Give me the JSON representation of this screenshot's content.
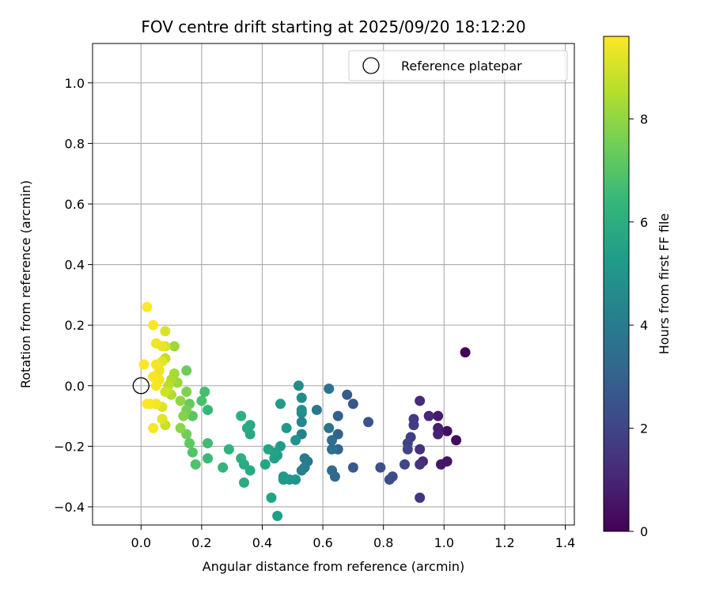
{
  "chart_data": {
    "type": "scatter",
    "title": "FOV centre drift starting at 2025/09/20 18:12:20",
    "xlabel": "Angular distance from reference (arcmin)",
    "ylabel": "Rotation from reference (arcmin)",
    "xlim": [
      -0.16,
      1.43
    ],
    "ylim": [
      -0.46,
      1.13
    ],
    "xticks": [
      0.0,
      0.2,
      0.4,
      0.6,
      0.8,
      1.0,
      1.2,
      1.4
    ],
    "xtick_labels": [
      "0.0",
      "0.2",
      "0.4",
      "0.6",
      "0.8",
      "1.0",
      "1.2",
      "1.4"
    ],
    "yticks": [
      -0.4,
      -0.2,
      0.0,
      0.2,
      0.4,
      0.6,
      0.8,
      1.0
    ],
    "ytick_labels": [
      "−0.4",
      "−0.2",
      "0.0",
      "0.2",
      "0.4",
      "0.6",
      "0.8",
      "1.0"
    ],
    "grid": true,
    "legend": {
      "placement": "upper right",
      "entries": [
        "Reference platepar"
      ]
    },
    "reference_point": {
      "x": 0.0,
      "y": 0.0
    },
    "colorbar": {
      "label": "Hours from first FF file",
      "colormap": "viridis",
      "range": [
        0,
        9.6
      ],
      "ticks": [
        0,
        2,
        4,
        6,
        8
      ],
      "tick_labels": [
        "0",
        "2",
        "4",
        "6",
        "8"
      ]
    },
    "points": [
      {
        "x": 1.07,
        "y": 0.11,
        "h": 0.1
      },
      {
        "x": 1.04,
        "y": -0.18,
        "h": 0.3
      },
      {
        "x": 1.01,
        "y": -0.15,
        "h": 0.4
      },
      {
        "x": 1.01,
        "y": -0.25,
        "h": 0.5
      },
      {
        "x": 0.99,
        "y": -0.26,
        "h": 0.6
      },
      {
        "x": 0.98,
        "y": -0.1,
        "h": 0.7
      },
      {
        "x": 0.98,
        "y": -0.14,
        "h": 0.8
      },
      {
        "x": 0.98,
        "y": -0.16,
        "h": 0.9
      },
      {
        "x": 0.95,
        "y": -0.1,
        "h": 1.0
      },
      {
        "x": 0.93,
        "y": -0.25,
        "h": 1.1
      },
      {
        "x": 0.92,
        "y": -0.05,
        "h": 1.2
      },
      {
        "x": 0.92,
        "y": -0.21,
        "h": 1.3
      },
      {
        "x": 0.92,
        "y": -0.26,
        "h": 1.4
      },
      {
        "x": 0.92,
        "y": -0.37,
        "h": 1.5
      },
      {
        "x": 0.9,
        "y": -0.11,
        "h": 1.6
      },
      {
        "x": 0.9,
        "y": -0.13,
        "h": 1.7
      },
      {
        "x": 0.89,
        "y": -0.17,
        "h": 1.8
      },
      {
        "x": 0.88,
        "y": -0.19,
        "h": 1.9
      },
      {
        "x": 0.88,
        "y": -0.21,
        "h": 2.0
      },
      {
        "x": 0.87,
        "y": -0.26,
        "h": 2.1
      },
      {
        "x": 0.83,
        "y": -0.3,
        "h": 2.2
      },
      {
        "x": 0.82,
        "y": -0.31,
        "h": 2.3
      },
      {
        "x": 0.79,
        "y": -0.27,
        "h": 2.4
      },
      {
        "x": 0.75,
        "y": -0.12,
        "h": 2.5
      },
      {
        "x": 0.7,
        "y": -0.06,
        "h": 2.6
      },
      {
        "x": 0.7,
        "y": -0.27,
        "h": 2.7
      },
      {
        "x": 0.68,
        "y": -0.03,
        "h": 2.8
      },
      {
        "x": 0.65,
        "y": -0.1,
        "h": 2.9
      },
      {
        "x": 0.65,
        "y": -0.16,
        "h": 3.0
      },
      {
        "x": 0.65,
        "y": -0.21,
        "h": 3.1
      },
      {
        "x": 0.64,
        "y": -0.3,
        "h": 3.2
      },
      {
        "x": 0.63,
        "y": -0.28,
        "h": 3.3
      },
      {
        "x": 0.63,
        "y": -0.18,
        "h": 3.4
      },
      {
        "x": 0.63,
        "y": -0.21,
        "h": 3.5
      },
      {
        "x": 0.62,
        "y": -0.14,
        "h": 3.6
      },
      {
        "x": 0.62,
        "y": -0.01,
        "h": 3.7
      },
      {
        "x": 0.58,
        "y": -0.08,
        "h": 3.8
      },
      {
        "x": 0.55,
        "y": -0.25,
        "h": 3.9
      },
      {
        "x": 0.54,
        "y": -0.24,
        "h": 4.0
      },
      {
        "x": 0.54,
        "y": -0.27,
        "h": 4.1
      },
      {
        "x": 0.53,
        "y": -0.28,
        "h": 4.2
      },
      {
        "x": 0.53,
        "y": -0.16,
        "h": 4.3
      },
      {
        "x": 0.53,
        "y": -0.12,
        "h": 4.4
      },
      {
        "x": 0.53,
        "y": -0.09,
        "h": 4.5
      },
      {
        "x": 0.53,
        "y": -0.04,
        "h": 4.6
      },
      {
        "x": 0.52,
        "y": 0.0,
        "h": 4.7
      },
      {
        "x": 0.53,
        "y": -0.08,
        "h": 4.8
      },
      {
        "x": 0.51,
        "y": -0.18,
        "h": 4.9
      },
      {
        "x": 0.51,
        "y": -0.31,
        "h": 5.0
      },
      {
        "x": 0.49,
        "y": -0.31,
        "h": 5.05
      },
      {
        "x": 0.48,
        "y": -0.14,
        "h": 5.1
      },
      {
        "x": 0.47,
        "y": -0.31,
        "h": 5.15
      },
      {
        "x": 0.47,
        "y": -0.3,
        "h": 5.2
      },
      {
        "x": 0.46,
        "y": -0.06,
        "h": 5.25
      },
      {
        "x": 0.46,
        "y": -0.2,
        "h": 5.3
      },
      {
        "x": 0.45,
        "y": -0.23,
        "h": 5.35
      },
      {
        "x": 0.45,
        "y": -0.43,
        "h": 5.4
      },
      {
        "x": 0.44,
        "y": -0.24,
        "h": 5.45
      },
      {
        "x": 0.44,
        "y": -0.22,
        "h": 5.5
      },
      {
        "x": 0.43,
        "y": -0.37,
        "h": 5.55
      },
      {
        "x": 0.42,
        "y": -0.21,
        "h": 5.6
      },
      {
        "x": 0.41,
        "y": -0.26,
        "h": 5.65
      },
      {
        "x": 0.36,
        "y": -0.16,
        "h": 5.7
      },
      {
        "x": 0.36,
        "y": -0.13,
        "h": 5.75
      },
      {
        "x": 0.36,
        "y": -0.28,
        "h": 5.8
      },
      {
        "x": 0.35,
        "y": -0.14,
        "h": 5.85
      },
      {
        "x": 0.34,
        "y": -0.32,
        "h": 5.9
      },
      {
        "x": 0.34,
        "y": -0.26,
        "h": 5.95
      },
      {
        "x": 0.33,
        "y": -0.24,
        "h": 6.0
      },
      {
        "x": 0.33,
        "y": -0.1,
        "h": 6.1
      },
      {
        "x": 0.29,
        "y": -0.21,
        "h": 6.2
      },
      {
        "x": 0.27,
        "y": -0.27,
        "h": 6.3
      },
      {
        "x": 0.22,
        "y": -0.08,
        "h": 6.4
      },
      {
        "x": 0.22,
        "y": -0.24,
        "h": 6.5
      },
      {
        "x": 0.22,
        "y": -0.19,
        "h": 6.6
      },
      {
        "x": 0.21,
        "y": -0.02,
        "h": 6.7
      },
      {
        "x": 0.2,
        "y": -0.05,
        "h": 6.8
      },
      {
        "x": 0.18,
        "y": -0.26,
        "h": 6.9
      },
      {
        "x": 0.17,
        "y": -0.22,
        "h": 7.0
      },
      {
        "x": 0.17,
        "y": -0.1,
        "h": 7.1
      },
      {
        "x": 0.16,
        "y": -0.19,
        "h": 7.2
      },
      {
        "x": 0.16,
        "y": -0.06,
        "h": 7.3
      },
      {
        "x": 0.15,
        "y": 0.05,
        "h": 7.4
      },
      {
        "x": 0.15,
        "y": -0.16,
        "h": 7.5
      },
      {
        "x": 0.15,
        "y": -0.08,
        "h": 7.6
      },
      {
        "x": 0.15,
        "y": -0.02,
        "h": 7.7
      },
      {
        "x": 0.14,
        "y": -0.1,
        "h": 7.8
      },
      {
        "x": 0.13,
        "y": -0.14,
        "h": 7.9
      },
      {
        "x": 0.13,
        "y": -0.05,
        "h": 8.0
      },
      {
        "x": 0.12,
        "y": 0.01,
        "h": 8.1
      },
      {
        "x": 0.11,
        "y": 0.13,
        "h": 8.2
      },
      {
        "x": 0.11,
        "y": 0.04,
        "h": 8.3
      },
      {
        "x": 0.1,
        "y": 0.02,
        "h": 8.4
      },
      {
        "x": 0.1,
        "y": -0.03,
        "h": 8.5
      },
      {
        "x": 0.09,
        "y": 0.0,
        "h": 8.6
      },
      {
        "x": 0.08,
        "y": 0.09,
        "h": 8.7
      },
      {
        "x": 0.08,
        "y": -0.13,
        "h": 8.8
      },
      {
        "x": 0.08,
        "y": -0.02,
        "h": 8.9
      },
      {
        "x": 0.08,
        "y": 0.13,
        "h": 9.0
      },
      {
        "x": 0.08,
        "y": 0.18,
        "h": 9.1
      },
      {
        "x": 0.07,
        "y": -0.07,
        "h": 9.15
      },
      {
        "x": 0.07,
        "y": -0.11,
        "h": 9.2
      },
      {
        "x": 0.07,
        "y": 0.08,
        "h": 9.25
      },
      {
        "x": 0.07,
        "y": 0.13,
        "h": 9.3
      },
      {
        "x": 0.06,
        "y": 0.05,
        "h": 9.35
      },
      {
        "x": 0.06,
        "y": 0.02,
        "h": 9.4
      },
      {
        "x": 0.05,
        "y": 0.14,
        "h": 9.42
      },
      {
        "x": 0.05,
        "y": 0.07,
        "h": 9.44
      },
      {
        "x": 0.05,
        "y": -0.06,
        "h": 9.46
      },
      {
        "x": 0.05,
        "y": 0.0,
        "h": 9.48
      },
      {
        "x": 0.04,
        "y": 0.2,
        "h": 9.5
      },
      {
        "x": 0.04,
        "y": -0.14,
        "h": 9.52
      },
      {
        "x": 0.04,
        "y": 0.03,
        "h": 9.54
      },
      {
        "x": 0.03,
        "y": -0.06,
        "h": 9.56
      },
      {
        "x": 0.02,
        "y": 0.26,
        "h": 9.58
      },
      {
        "x": 0.02,
        "y": -0.06,
        "h": 9.59
      },
      {
        "x": 0.01,
        "y": 0.07,
        "h": 9.6
      }
    ]
  }
}
